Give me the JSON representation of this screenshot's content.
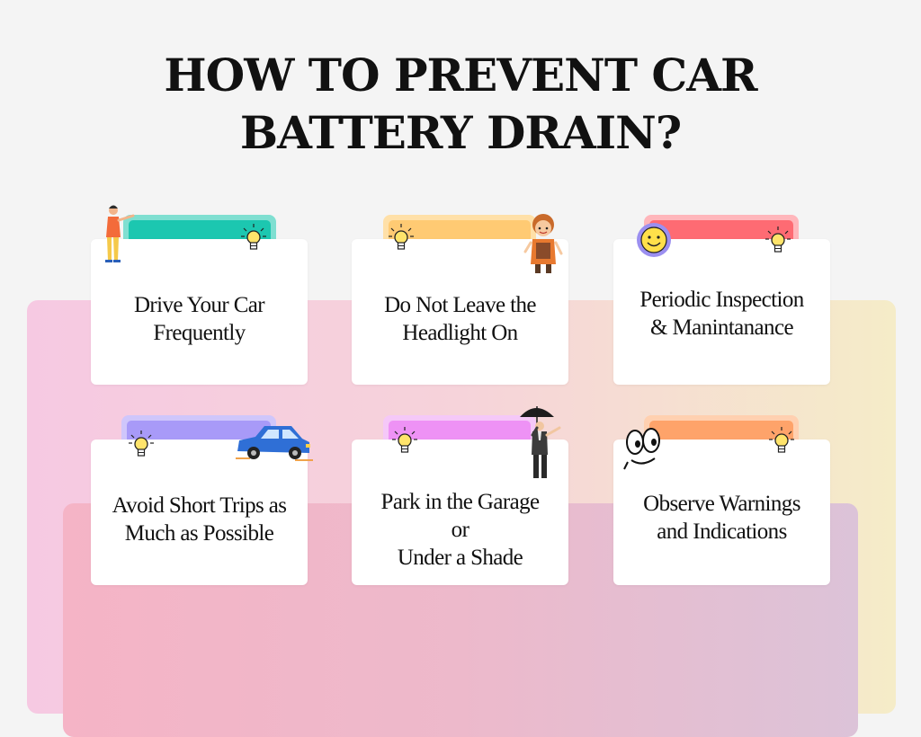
{
  "title": "HOW TO PREVENT CAR\nBATTERY DRAIN?",
  "colors": {
    "teal": "#1cc7b0",
    "teal_light": "#7fdfd1",
    "yellow": "#ffca73",
    "yellow_light": "#ffe0a8",
    "red": "#fe6b73",
    "red_light": "#ffb6bb",
    "purple": "#a89af8",
    "purple_light": "#cfc6fb",
    "magenta": "#ee92f5",
    "magenta_light": "#f5c8f8",
    "orange": "#fea36a",
    "orange_light": "#ffd0b0"
  },
  "tips": [
    {
      "text": "Drive Your Car\nFrequently",
      "decor": "person-presenting-icon"
    },
    {
      "text": "Do Not Leave the\nHeadlight On",
      "decor": "girl-character-icon"
    },
    {
      "text": "Periodic Inspection\n& Manintanance",
      "decor": "smiley-icon"
    },
    {
      "text": "Avoid Short Trips as\nMuch as Possible",
      "decor": "blue-car-icon"
    },
    {
      "text": "Park in the Garage\nor\nUnder a Shade",
      "decor": "man-with-umbrella-icon"
    },
    {
      "text": "Observe Warnings\nand Indications",
      "decor": "cartoon-eyes-icon"
    }
  ]
}
